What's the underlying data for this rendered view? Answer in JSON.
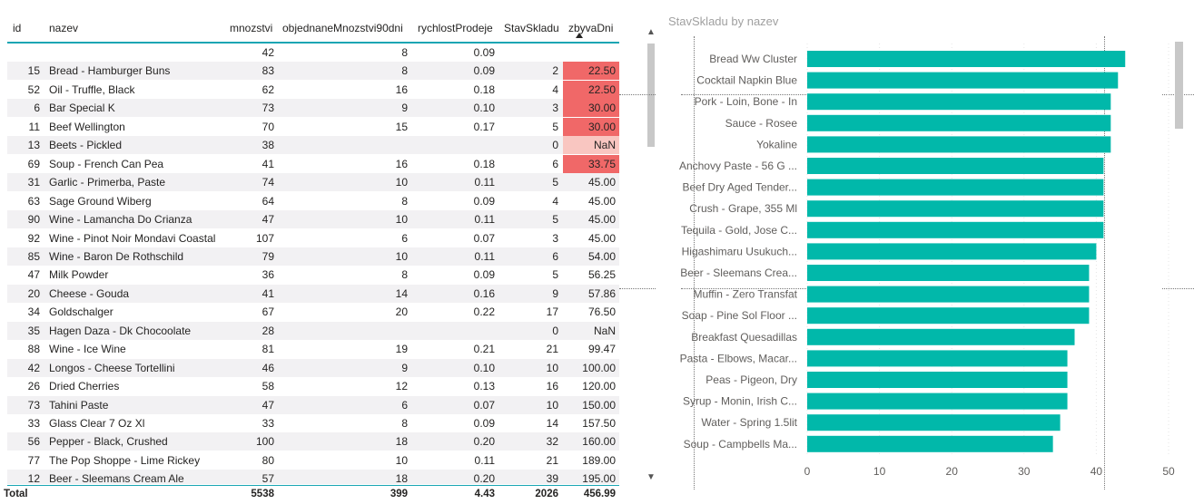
{
  "table": {
    "headers": {
      "id": "id",
      "nazev": "nazev",
      "mnozstvi": "mnozstvi",
      "objednane": "objednaneMnozstvi90dni",
      "rychlost": "rychlostProdeje",
      "stav": "StavSkladu",
      "zbyva": "zbyvaDni"
    },
    "rows": [
      {
        "id": "",
        "nazev": "",
        "mnozstvi": "42",
        "objednane": "8",
        "rychlost": "0.09",
        "stav": "",
        "zbyva": "",
        "highlight": "none"
      },
      {
        "id": "15",
        "nazev": "Bread - Hamburger Buns",
        "mnozstvi": "83",
        "objednane": "8",
        "rychlost": "0.09",
        "stav": "2",
        "zbyva": "22.50",
        "highlight": "strong"
      },
      {
        "id": "52",
        "nazev": "Oil - Truffle, Black",
        "mnozstvi": "62",
        "objednane": "16",
        "rychlost": "0.18",
        "stav": "4",
        "zbyva": "22.50",
        "highlight": "strong"
      },
      {
        "id": "6",
        "nazev": "Bar Special K",
        "mnozstvi": "73",
        "objednane": "9",
        "rychlost": "0.10",
        "stav": "3",
        "zbyva": "30.00",
        "highlight": "strong"
      },
      {
        "id": "11",
        "nazev": "Beef Wellington",
        "mnozstvi": "70",
        "objednane": "15",
        "rychlost": "0.17",
        "stav": "5",
        "zbyva": "30.00",
        "highlight": "strong"
      },
      {
        "id": "13",
        "nazev": "Beets - Pickled",
        "mnozstvi": "38",
        "objednane": "",
        "rychlost": "",
        "stav": "0",
        "zbyva": "NaN",
        "highlight": "soft"
      },
      {
        "id": "69",
        "nazev": "Soup - French Can Pea",
        "mnozstvi": "41",
        "objednane": "16",
        "rychlost": "0.18",
        "stav": "6",
        "zbyva": "33.75",
        "highlight": "strong"
      },
      {
        "id": "31",
        "nazev": "Garlic - Primerba, Paste",
        "mnozstvi": "74",
        "objednane": "10",
        "rychlost": "0.11",
        "stav": "5",
        "zbyva": "45.00",
        "highlight": "none"
      },
      {
        "id": "63",
        "nazev": "Sage Ground Wiberg",
        "mnozstvi": "64",
        "objednane": "8",
        "rychlost": "0.09",
        "stav": "4",
        "zbyva": "45.00",
        "highlight": "none"
      },
      {
        "id": "90",
        "nazev": "Wine - Lamancha Do Crianza",
        "mnozstvi": "47",
        "objednane": "10",
        "rychlost": "0.11",
        "stav": "5",
        "zbyva": "45.00",
        "highlight": "none"
      },
      {
        "id": "92",
        "nazev": "Wine - Pinot Noir Mondavi Coastal",
        "mnozstvi": "107",
        "objednane": "6",
        "rychlost": "0.07",
        "stav": "3",
        "zbyva": "45.00",
        "highlight": "none"
      },
      {
        "id": "85",
        "nazev": "Wine - Baron De Rothschild",
        "mnozstvi": "79",
        "objednane": "10",
        "rychlost": "0.11",
        "stav": "6",
        "zbyva": "54.00",
        "highlight": "none"
      },
      {
        "id": "47",
        "nazev": "Milk Powder",
        "mnozstvi": "36",
        "objednane": "8",
        "rychlost": "0.09",
        "stav": "5",
        "zbyva": "56.25",
        "highlight": "none"
      },
      {
        "id": "20",
        "nazev": "Cheese - Gouda",
        "mnozstvi": "41",
        "objednane": "14",
        "rychlost": "0.16",
        "stav": "9",
        "zbyva": "57.86",
        "highlight": "none"
      },
      {
        "id": "34",
        "nazev": "Goldschalger",
        "mnozstvi": "67",
        "objednane": "20",
        "rychlost": "0.22",
        "stav": "17",
        "zbyva": "76.50",
        "highlight": "none"
      },
      {
        "id": "35",
        "nazev": "Hagen Daza - Dk Chocoolate",
        "mnozstvi": "28",
        "objednane": "",
        "rychlost": "",
        "stav": "0",
        "zbyva": "NaN",
        "highlight": "none"
      },
      {
        "id": "88",
        "nazev": "Wine - Ice Wine",
        "mnozstvi": "81",
        "objednane": "19",
        "rychlost": "0.21",
        "stav": "21",
        "zbyva": "99.47",
        "highlight": "none"
      },
      {
        "id": "42",
        "nazev": "Longos - Cheese Tortellini",
        "mnozstvi": "46",
        "objednane": "9",
        "rychlost": "0.10",
        "stav": "10",
        "zbyva": "100.00",
        "highlight": "none"
      },
      {
        "id": "26",
        "nazev": "Dried Cherries",
        "mnozstvi": "58",
        "objednane": "12",
        "rychlost": "0.13",
        "stav": "16",
        "zbyva": "120.00",
        "highlight": "none"
      },
      {
        "id": "73",
        "nazev": "Tahini Paste",
        "mnozstvi": "47",
        "objednane": "6",
        "rychlost": "0.07",
        "stav": "10",
        "zbyva": "150.00",
        "highlight": "none"
      },
      {
        "id": "33",
        "nazev": "Glass Clear 7 Oz Xl",
        "mnozstvi": "33",
        "objednane": "8",
        "rychlost": "0.09",
        "stav": "14",
        "zbyva": "157.50",
        "highlight": "none"
      },
      {
        "id": "56",
        "nazev": "Pepper - Black, Crushed",
        "mnozstvi": "100",
        "objednane": "18",
        "rychlost": "0.20",
        "stav": "32",
        "zbyva": "160.00",
        "highlight": "none"
      },
      {
        "id": "77",
        "nazev": "The Pop Shoppe - Lime Rickey",
        "mnozstvi": "80",
        "objednane": "10",
        "rychlost": "0.11",
        "stav": "21",
        "zbyva": "189.00",
        "highlight": "none"
      },
      {
        "id": "12",
        "nazev": "Beer - Sleemans Cream Ale",
        "mnozstvi": "57",
        "objednane": "18",
        "rychlost": "0.20",
        "stav": "39",
        "zbyva": "195.00",
        "highlight": "none"
      }
    ],
    "total": {
      "label": "Total",
      "mnozstvi": "5538",
      "objednane": "399",
      "rychlost": "4.43",
      "stav": "2026",
      "zbyva": "456.99"
    },
    "scroll_up_icon": "▲",
    "scroll_down_icon": "▼"
  },
  "chart": {
    "title": "StavSkladu by nazev"
  },
  "colors": {
    "bar": "#01b8aa",
    "highlight_strong": "#f06868",
    "highlight_soft": "#f9c6c1",
    "header_underline": "#19a5b3"
  },
  "chart_data": {
    "type": "bar",
    "orientation": "horizontal",
    "title": "StavSkladu by nazev",
    "categories": [
      "Bread Ww Cluster",
      "Cocktail Napkin Blue",
      "Pork - Loin, Bone - In",
      "Sauce - Rosee",
      "Yokaline",
      "Anchovy Paste - 56 G ...",
      "Beef Dry Aged Tender...",
      "Crush - Grape, 355 Ml",
      "Tequila - Gold, Jose C...",
      "Higashimaru Usukuch...",
      "Beer - Sleemans Crea...",
      "Muffin - Zero Transfat",
      "Soap - Pine Sol Floor ...",
      "Breakfast Quesadillas",
      "Pasta - Elbows, Macar...",
      "Peas - Pigeon, Dry",
      "Syrup - Monin, Irish C...",
      "Water - Spring 1.5lit",
      "Soup - Campbells Ma..."
    ],
    "values": [
      44,
      43,
      42,
      42,
      42,
      41,
      41,
      41,
      41,
      40,
      39,
      39,
      39,
      37,
      36,
      36,
      36,
      35,
      34
    ],
    "xlim": [
      0,
      50
    ],
    "xticks": [
      "0",
      "10",
      "20",
      "30",
      "40",
      "50"
    ],
    "grid": true
  }
}
